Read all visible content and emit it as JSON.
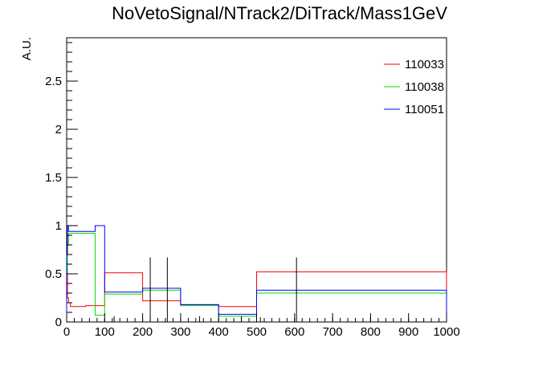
{
  "chart_data": {
    "type": "histogram",
    "title": "NoVetoSignal/NTrack2/DiTrack/Mass1GeV",
    "xlabel": "",
    "ylabel": "A.U.",
    "xlim": [
      0,
      1000
    ],
    "ylim": [
      0,
      2.95
    ],
    "x_ticks": [
      0,
      100,
      200,
      300,
      400,
      500,
      600,
      700,
      800,
      900,
      1000
    ],
    "x_tick_labels": [
      "0",
      "100",
      "200",
      "300",
      "400",
      "500",
      "600",
      "700",
      "800",
      "900",
      "1000"
    ],
    "y_ticks": [
      0,
      0.5,
      1,
      1.5,
      2,
      2.5
    ],
    "y_tick_labels": [
      "0",
      "0.5",
      "1",
      "1.5",
      "2",
      "2.5"
    ],
    "legend": {
      "position": "top-right",
      "entries": [
        "110033",
        "110038",
        "110051"
      ]
    },
    "colors": {
      "110033": "#ff0000",
      "110038": "#00dd00",
      "110051": "#0000ff",
      "errors": "#000000"
    },
    "series": [
      {
        "name": "110033",
        "edges": [
          0,
          2,
          5,
          10,
          20,
          50,
          100,
          200,
          300,
          400,
          500,
          1000
        ],
        "values": [
          0.55,
          0.25,
          0.2,
          0.16,
          0.16,
          0.17,
          0.51,
          0.22,
          0.18,
          0.16,
          0.52
        ]
      },
      {
        "name": "110038",
        "edges": [
          0,
          2,
          5,
          10,
          20,
          50,
          75,
          100,
          200,
          300,
          400,
          500,
          1000
        ],
        "values": [
          0.5,
          0.8,
          0.92,
          0.92,
          0.92,
          0.92,
          0.07,
          0.29,
          0.33,
          0.17,
          0.06,
          0.3
        ]
      },
      {
        "name": "110051",
        "edges": [
          0,
          2,
          5,
          10,
          20,
          50,
          75,
          100,
          200,
          300,
          400,
          500,
          1000
        ],
        "values": [
          0.7,
          1.0,
          0.94,
          0.94,
          0.94,
          0.94,
          1.0,
          0.31,
          0.35,
          0.18,
          0.08,
          0.33
        ]
      }
    ],
    "error_bars": [
      {
        "x": 220,
        "y0": 0,
        "y1": 0.67
      },
      {
        "x": 265,
        "y0": 0,
        "y1": 0.67
      },
      {
        "x": 605,
        "y0": 0,
        "y1": 0.67
      },
      {
        "x": 125,
        "y0": 0,
        "y1": 0.06
      },
      {
        "x": 350,
        "y0": 0,
        "y1": 0.06
      },
      {
        "x": 460,
        "y0": 0,
        "y1": 0.06
      },
      {
        "x": 510,
        "y0": 0,
        "y1": 0.05
      },
      {
        "x": 700,
        "y0": 0,
        "y1": 0.05
      },
      {
        "x": 800,
        "y0": 0,
        "y1": 0.05
      }
    ]
  }
}
